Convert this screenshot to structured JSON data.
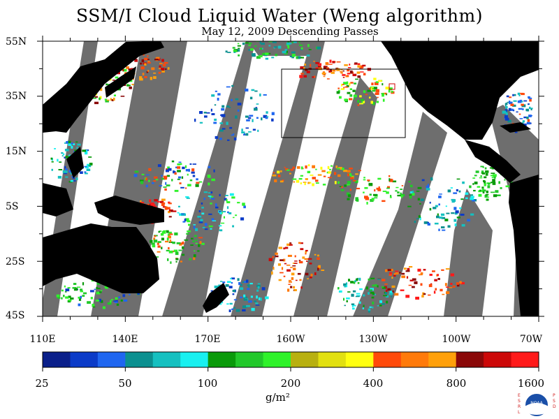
{
  "title": "SSM/I Cloud Liquid Water (Weng algorithm)",
  "subtitle": "May 12, 2009  Descending Passes",
  "lat_labels": [
    "55N",
    "35N",
    "15N",
    "5S",
    "25S",
    "45S"
  ],
  "lon_labels": [
    "110E",
    "140E",
    "170E",
    "160W",
    "130W",
    "100W",
    "70W"
  ],
  "colorbar": {
    "colors": [
      "#0a1f8a",
      "#0b3bc8",
      "#1f66f0",
      "#0b9090",
      "#15c0c0",
      "#19f0f0",
      "#0a9a0a",
      "#22c82a",
      "#2ff22a",
      "#b8b010",
      "#e2e010",
      "#ffff10",
      "#ff4a0a",
      "#ff7a0a",
      "#ffa00a",
      "#8a0808",
      "#cc0808",
      "#ff1a1a"
    ],
    "tick_labels": [
      "25",
      "50",
      "100",
      "200",
      "400",
      "800",
      "1600"
    ],
    "unit_label": "g/m²"
  },
  "logo": {
    "icon": "noaa-logo-icon",
    "left_text": "ESRL",
    "right_text": "PSD"
  },
  "colors": {
    "background": "#ffffff",
    "land": "#000000",
    "no_data": "#6e6e6e",
    "frame": "#000000"
  }
}
